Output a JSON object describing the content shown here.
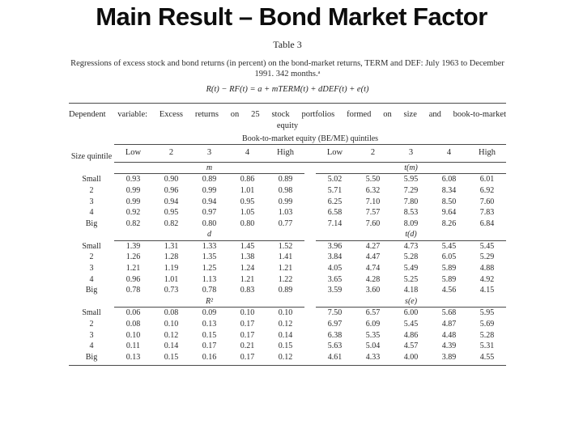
{
  "slide": {
    "title": "Main Result – Bond Market Factor",
    "background_color": "#ffffff",
    "ink_color": "#262626",
    "rule_color": "#4a4a4a"
  },
  "table": {
    "table_number": "Table 3",
    "caption": "Regressions of excess stock and bond returns (in percent) on the bond-market returns, TERM and DEF: July 1963 to December 1991. 342 months.ᵃ",
    "formula": "R(t) − RF(t) = a + mTERM(t) + dDEF(t) + e(t)",
    "dep_var_line1": "Dependent variable: Excess returns on 25 stock portfolios formed on size and book-to-market",
    "dep_var_line2": "equity",
    "beme_spanner": "Book-to-market equity (BE/ME) quintiles",
    "size_quintile_label": "Size\nquintile",
    "column_headers": [
      "Low",
      "2",
      "3",
      "4",
      "High",
      "Low",
      "2",
      "3",
      "4",
      "High"
    ],
    "row_labels": [
      "Small",
      "2",
      "3",
      "4",
      "Big"
    ],
    "panels": [
      {
        "left_label": "m",
        "right_label": "t(m)",
        "left": [
          [
            "0.93",
            "0.90",
            "0.89",
            "0.86",
            "0.89"
          ],
          [
            "0.99",
            "0.96",
            "0.99",
            "1.01",
            "0.98"
          ],
          [
            "0.99",
            "0.94",
            "0.94",
            "0.95",
            "0.99"
          ],
          [
            "0.92",
            "0.95",
            "0.97",
            "1.05",
            "1.03"
          ],
          [
            "0.82",
            "0.82",
            "0.80",
            "0.80",
            "0.77"
          ]
        ],
        "right": [
          [
            "5.02",
            "5.50",
            "5.95",
            "6.08",
            "6.01"
          ],
          [
            "5.71",
            "6.32",
            "7.29",
            "8.34",
            "6.92"
          ],
          [
            "6.25",
            "7.10",
            "7.80",
            "8.50",
            "7.60"
          ],
          [
            "6.58",
            "7.57",
            "8.53",
            "9.64",
            "7.83"
          ],
          [
            "7.14",
            "7.60",
            "8.09",
            "8.26",
            "6.84"
          ]
        ]
      },
      {
        "left_label": "d",
        "right_label": "t(d)",
        "left": [
          [
            "1.39",
            "1.31",
            "1.33",
            "1.45",
            "1.52"
          ],
          [
            "1.26",
            "1.28",
            "1.35",
            "1.38",
            "1.41"
          ],
          [
            "1.21",
            "1.19",
            "1.25",
            "1.24",
            "1.21"
          ],
          [
            "0.96",
            "1.01",
            "1.13",
            "1.21",
            "1.22"
          ],
          [
            "0.78",
            "0.73",
            "0.78",
            "0.83",
            "0.89"
          ]
        ],
        "right": [
          [
            "3.96",
            "4.27",
            "4.73",
            "5.45",
            "5.45"
          ],
          [
            "3.84",
            "4.47",
            "5.28",
            "6.05",
            "5.29"
          ],
          [
            "4.05",
            "4.74",
            "5.49",
            "5.89",
            "4.88"
          ],
          [
            "3.65",
            "4.28",
            "5.25",
            "5.89",
            "4.92"
          ],
          [
            "3.59",
            "3.60",
            "4.18",
            "4.56",
            "4.15"
          ]
        ]
      },
      {
        "left_label": "R²",
        "right_label": "s(e)",
        "left": [
          [
            "0.06",
            "0.08",
            "0.09",
            "0.10",
            "0.10"
          ],
          [
            "0.08",
            "0.10",
            "0.13",
            "0.17",
            "0.12"
          ],
          [
            "0.10",
            "0.12",
            "0.15",
            "0.17",
            "0.14"
          ],
          [
            "0.11",
            "0.14",
            "0.17",
            "0.21",
            "0.15"
          ],
          [
            "0.13",
            "0.15",
            "0.16",
            "0.17",
            "0.12"
          ]
        ],
        "right": [
          [
            "7.50",
            "6.57",
            "6.00",
            "5.68",
            "5.95"
          ],
          [
            "6.97",
            "6.09",
            "5.45",
            "4.87",
            "5.69"
          ],
          [
            "6.38",
            "5.35",
            "4.86",
            "4.48",
            "5.28"
          ],
          [
            "5.63",
            "5.04",
            "4.57",
            "4.39",
            "5.31"
          ],
          [
            "4.61",
            "4.33",
            "4.00",
            "3.89",
            "4.55"
          ]
        ]
      }
    ]
  }
}
